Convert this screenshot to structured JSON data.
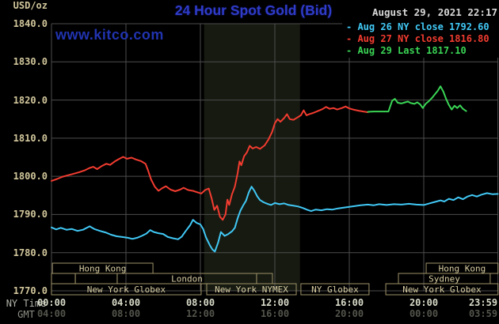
{
  "header": {
    "unit_label": "USD/oz",
    "title": "24 Hour Spot Gold (Bid)",
    "timestamp": "August 29, 2021 22:17",
    "watermark": "www.kitco.com"
  },
  "legend": {
    "items": [
      {
        "label": "- Aug 26 NY close 1792.60",
        "color": "#41c8f5"
      },
      {
        "label": "- Aug 27 NY close 1816.80",
        "color": "#f23c30"
      },
      {
        "label": "- Aug 29 Last 1817.10",
        "color": "#3ad455"
      }
    ]
  },
  "axes": {
    "ny_time_label": "NY Time",
    "gmt_label": "GMT",
    "x_ticks": [
      {
        "t": 0,
        "ny": "00:00",
        "gmt": "04:00"
      },
      {
        "t": 4,
        "ny": "04:00",
        "gmt": "08:00"
      },
      {
        "t": 8,
        "ny": "08:00",
        "gmt": "12:00"
      },
      {
        "t": 12,
        "ny": "12:00",
        "gmt": "16:00"
      },
      {
        "t": 16,
        "ny": "16:00",
        "gmt": "20:00"
      },
      {
        "t": 20,
        "ny": "20:00",
        "gmt": "00:00"
      },
      {
        "t": 23.983,
        "ny": "23:59",
        "gmt": "03:59"
      }
    ]
  },
  "sessions": {
    "border_color": "#9e9268",
    "text_color": "#d8cda2",
    "boxes": [
      {
        "row": 0,
        "t0": 0.05,
        "t1": 5.45,
        "label": "Hong Kong"
      },
      {
        "row": 0,
        "t0": 20.13,
        "t1": 23.99,
        "label": "Hong Kong"
      },
      {
        "row": 1,
        "t0": 0.0,
        "t1": 1.28,
        "label": ""
      },
      {
        "row": 1,
        "t0": 1.28,
        "t1": 3.53,
        "label": ""
      },
      {
        "row": 1,
        "t0": 3.53,
        "t1": 11.02,
        "label": "London"
      },
      {
        "row": 1,
        "t0": 11.02,
        "t1": 11.87,
        "label": ""
      },
      {
        "row": 1,
        "t0": 18.64,
        "t1": 23.57,
        "label": "Sydney"
      },
      {
        "row": 2,
        "t0": 0.0,
        "t1": 8.04,
        "label": "New York Globex"
      },
      {
        "row": 2,
        "t0": 8.34,
        "t1": 13.15,
        "label": "New York NYMEX"
      },
      {
        "row": 2,
        "t0": 13.4,
        "t1": 17.06,
        "label": "NY Globex"
      },
      {
        "row": 2,
        "t0": 17.96,
        "t1": 23.99,
        "label": "New York Globex"
      }
    ]
  },
  "chart_data": {
    "type": "line",
    "title": "24 Hour Spot Gold (Bid)",
    "ylabel": "USD/oz",
    "xlabel": "NY Time (top) / GMT (bottom)",
    "ylim": [
      1770,
      1840
    ],
    "xlim_hours": [
      0,
      23.983
    ],
    "y_ticks": [
      1840,
      1830,
      1820,
      1810,
      1800,
      1790,
      1780,
      1770
    ],
    "grid": true,
    "grid_color": "#4d4d4d",
    "background": "#000000",
    "highlight_band": {
      "t0": 8.2,
      "t1": 13.35,
      "color": "#161a11",
      "meaning": "New York NYMEX floor session"
    },
    "series": [
      {
        "name": "Aug 26 (NY close 1792.60)",
        "color": "#41c8f5",
        "width": 2,
        "points": [
          [
            0,
            1786.6
          ],
          [
            0.25,
            1786.1
          ],
          [
            0.5,
            1786.5
          ],
          [
            0.8,
            1786.0
          ],
          [
            1.1,
            1786.2
          ],
          [
            1.4,
            1785.7
          ],
          [
            1.7,
            1786.0
          ],
          [
            2.05,
            1786.9
          ],
          [
            2.3,
            1786.2
          ],
          [
            2.6,
            1785.7
          ],
          [
            2.9,
            1785.3
          ],
          [
            3.2,
            1784.7
          ],
          [
            3.5,
            1784.3
          ],
          [
            3.8,
            1784.1
          ],
          [
            4.1,
            1783.9
          ],
          [
            4.35,
            1783.6
          ],
          [
            4.6,
            1783.9
          ],
          [
            4.85,
            1784.4
          ],
          [
            5.1,
            1785.0
          ],
          [
            5.3,
            1785.9
          ],
          [
            5.5,
            1785.4
          ],
          [
            5.75,
            1785.1
          ],
          [
            6.0,
            1784.9
          ],
          [
            6.25,
            1784.1
          ],
          [
            6.5,
            1783.8
          ],
          [
            6.8,
            1783.5
          ],
          [
            7.0,
            1784.2
          ],
          [
            7.2,
            1785.6
          ],
          [
            7.45,
            1787.2
          ],
          [
            7.6,
            1788.6
          ],
          [
            7.8,
            1787.8
          ],
          [
            8.0,
            1787.4
          ],
          [
            8.15,
            1786.2
          ],
          [
            8.3,
            1784.0
          ],
          [
            8.5,
            1782.0
          ],
          [
            8.65,
            1780.8
          ],
          [
            8.78,
            1780.3
          ],
          [
            8.95,
            1782.6
          ],
          [
            9.1,
            1785.4
          ],
          [
            9.3,
            1784.4
          ],
          [
            9.5,
            1784.9
          ],
          [
            9.7,
            1785.6
          ],
          [
            9.85,
            1786.5
          ],
          [
            10.0,
            1789.0
          ],
          [
            10.15,
            1791.0
          ],
          [
            10.3,
            1792.4
          ],
          [
            10.45,
            1793.6
          ],
          [
            10.6,
            1795.8
          ],
          [
            10.75,
            1797.3
          ],
          [
            10.9,
            1796.2
          ],
          [
            11.05,
            1794.8
          ],
          [
            11.2,
            1793.8
          ],
          [
            11.4,
            1793.2
          ],
          [
            11.6,
            1792.8
          ],
          [
            11.8,
            1792.5
          ],
          [
            12.0,
            1793.0
          ],
          [
            12.25,
            1792.7
          ],
          [
            12.5,
            1792.9
          ],
          [
            12.75,
            1792.5
          ],
          [
            13.0,
            1792.3
          ],
          [
            13.25,
            1792.1
          ],
          [
            13.5,
            1791.7
          ],
          [
            13.75,
            1791.2
          ],
          [
            13.95,
            1790.9
          ],
          [
            14.2,
            1791.3
          ],
          [
            14.5,
            1791.1
          ],
          [
            14.8,
            1791.4
          ],
          [
            15.1,
            1791.3
          ],
          [
            15.4,
            1791.6
          ],
          [
            15.7,
            1791.8
          ],
          [
            16.0,
            1792.0
          ],
          [
            16.3,
            1792.2
          ],
          [
            16.6,
            1792.4
          ],
          [
            17.0,
            1792.6
          ],
          [
            17.3,
            1792.4
          ],
          [
            17.6,
            1792.7
          ],
          [
            18.0,
            1792.5
          ],
          [
            18.4,
            1792.7
          ],
          [
            18.8,
            1792.6
          ],
          [
            19.2,
            1792.8
          ],
          [
            19.6,
            1792.6
          ],
          [
            20.0,
            1792.5
          ],
          [
            20.3,
            1792.9
          ],
          [
            20.6,
            1793.3
          ],
          [
            20.9,
            1793.7
          ],
          [
            21.1,
            1793.4
          ],
          [
            21.35,
            1794.1
          ],
          [
            21.6,
            1793.8
          ],
          [
            21.85,
            1794.5
          ],
          [
            22.1,
            1794.0
          ],
          [
            22.35,
            1794.7
          ],
          [
            22.6,
            1795.1
          ],
          [
            22.85,
            1794.7
          ],
          [
            23.1,
            1795.2
          ],
          [
            23.4,
            1795.6
          ],
          [
            23.7,
            1795.3
          ],
          [
            23.98,
            1795.4
          ]
        ]
      },
      {
        "name": "Aug 27 (NY close 1816.80)",
        "color": "#f23c30",
        "width": 2,
        "points": [
          [
            0,
            1798.8
          ],
          [
            0.3,
            1799.3
          ],
          [
            0.6,
            1799.9
          ],
          [
            0.9,
            1800.3
          ],
          [
            1.2,
            1800.7
          ],
          [
            1.5,
            1801.1
          ],
          [
            1.8,
            1801.6
          ],
          [
            2.05,
            1802.2
          ],
          [
            2.25,
            1802.5
          ],
          [
            2.45,
            1801.9
          ],
          [
            2.7,
            1802.7
          ],
          [
            2.95,
            1803.3
          ],
          [
            3.15,
            1803.0
          ],
          [
            3.4,
            1803.9
          ],
          [
            3.65,
            1804.6
          ],
          [
            3.85,
            1805.1
          ],
          [
            4.05,
            1804.6
          ],
          [
            4.3,
            1804.9
          ],
          [
            4.55,
            1804.4
          ],
          [
            4.8,
            1804.0
          ],
          [
            5.05,
            1803.3
          ],
          [
            5.2,
            1801.4
          ],
          [
            5.35,
            1799.2
          ],
          [
            5.55,
            1797.3
          ],
          [
            5.75,
            1796.2
          ],
          [
            5.95,
            1796.9
          ],
          [
            6.15,
            1797.4
          ],
          [
            6.4,
            1796.5
          ],
          [
            6.65,
            1796.1
          ],
          [
            6.9,
            1796.5
          ],
          [
            7.1,
            1797.0
          ],
          [
            7.35,
            1796.4
          ],
          [
            7.6,
            1796.2
          ],
          [
            7.85,
            1795.8
          ],
          [
            8.05,
            1795.5
          ],
          [
            8.25,
            1796.4
          ],
          [
            8.45,
            1796.8
          ],
          [
            8.6,
            1794.3
          ],
          [
            8.75,
            1791.2
          ],
          [
            8.9,
            1792.3
          ],
          [
            9.05,
            1789.4
          ],
          [
            9.2,
            1788.6
          ],
          [
            9.35,
            1790.0
          ],
          [
            9.45,
            1793.9
          ],
          [
            9.55,
            1792.5
          ],
          [
            9.7,
            1795.3
          ],
          [
            9.85,
            1797.3
          ],
          [
            10.0,
            1800.8
          ],
          [
            10.1,
            1803.9
          ],
          [
            10.2,
            1802.9
          ],
          [
            10.35,
            1805.3
          ],
          [
            10.5,
            1806.3
          ],
          [
            10.65,
            1808.0
          ],
          [
            10.8,
            1807.3
          ],
          [
            11.0,
            1807.7
          ],
          [
            11.2,
            1807.2
          ],
          [
            11.45,
            1808.1
          ],
          [
            11.65,
            1809.6
          ],
          [
            11.85,
            1811.6
          ],
          [
            12.0,
            1813.9
          ],
          [
            12.15,
            1815.0
          ],
          [
            12.3,
            1814.3
          ],
          [
            12.5,
            1815.3
          ],
          [
            12.65,
            1816.3
          ],
          [
            12.8,
            1815.0
          ],
          [
            13.0,
            1814.8
          ],
          [
            13.2,
            1815.4
          ],
          [
            13.4,
            1816.0
          ],
          [
            13.55,
            1817.3
          ],
          [
            13.7,
            1816.0
          ],
          [
            13.85,
            1816.3
          ],
          [
            14.05,
            1816.6
          ],
          [
            14.3,
            1817.1
          ],
          [
            14.55,
            1817.6
          ],
          [
            14.75,
            1818.2
          ],
          [
            14.95,
            1817.7
          ],
          [
            15.15,
            1817.9
          ],
          [
            15.35,
            1817.5
          ],
          [
            15.6,
            1817.9
          ],
          [
            15.8,
            1818.3
          ],
          [
            16.0,
            1817.8
          ],
          [
            16.2,
            1817.5
          ],
          [
            16.5,
            1817.2
          ],
          [
            16.75,
            1817.0
          ],
          [
            17.0,
            1816.8
          ]
        ]
      },
      {
        "name": "Aug 29 (Last 1817.10)",
        "color": "#3ad455",
        "width": 2,
        "points": [
          [
            17.0,
            1816.9
          ],
          [
            17.3,
            1817.0
          ],
          [
            18.1,
            1817.0
          ],
          [
            18.3,
            1819.8
          ],
          [
            18.45,
            1820.3
          ],
          [
            18.6,
            1819.3
          ],
          [
            18.8,
            1819.1
          ],
          [
            19.0,
            1819.4
          ],
          [
            19.15,
            1819.6
          ],
          [
            19.3,
            1819.2
          ],
          [
            19.5,
            1819.0
          ],
          [
            19.65,
            1819.4
          ],
          [
            19.8,
            1818.9
          ],
          [
            19.95,
            1817.9
          ],
          [
            20.1,
            1819.0
          ],
          [
            20.25,
            1819.6
          ],
          [
            20.45,
            1820.6
          ],
          [
            20.6,
            1821.5
          ],
          [
            20.75,
            1822.4
          ],
          [
            20.9,
            1823.6
          ],
          [
            21.05,
            1822.2
          ],
          [
            21.2,
            1820.3
          ],
          [
            21.35,
            1818.7
          ],
          [
            21.5,
            1817.5
          ],
          [
            21.65,
            1818.5
          ],
          [
            21.8,
            1817.9
          ],
          [
            21.95,
            1818.6
          ],
          [
            22.1,
            1817.7
          ],
          [
            22.28,
            1817.1
          ]
        ]
      }
    ]
  }
}
